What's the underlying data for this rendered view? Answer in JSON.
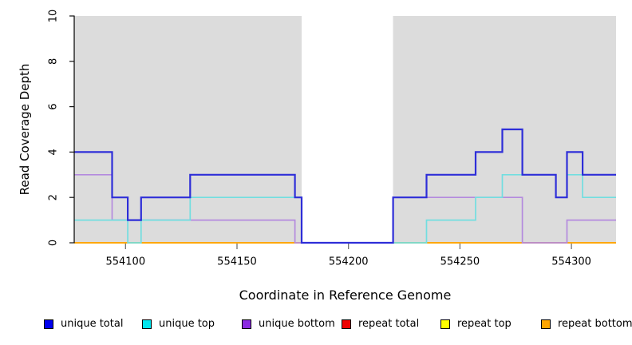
{
  "chart_data": {
    "type": "line",
    "subtype": "step-coverage",
    "title": "",
    "xlabel": "Coordinate in Reference Genome",
    "ylabel": "Read Coverage Depth",
    "xlim": [
      554077,
      554320
    ],
    "ylim": [
      0,
      10
    ],
    "x_ticks": [
      554100,
      554150,
      554200,
      554250,
      554300
    ],
    "y_ticks": [
      0,
      2,
      4,
      6,
      8,
      10
    ],
    "grid": false,
    "legend_position": "bottom",
    "plot_bg_color": "#dcdcdc",
    "zero_coverage_gap": [
      554179,
      554220
    ],
    "background_regions": [
      {
        "from": 554077,
        "to": 554179
      },
      {
        "from": 554220,
        "to": 554320
      }
    ],
    "series": [
      {
        "name": "unique total",
        "color": "#0000ee",
        "line_color": "#2e2ed8",
        "line_width": 2.2,
        "step_points": [
          [
            554077,
            4
          ],
          [
            554094,
            2
          ],
          [
            554101,
            1
          ],
          [
            554107,
            2
          ],
          [
            554129,
            3
          ],
          [
            554176,
            2
          ],
          [
            554179,
            0
          ],
          [
            554220,
            2
          ],
          [
            554235,
            3
          ],
          [
            554257,
            4
          ],
          [
            554269,
            5
          ],
          [
            554278,
            3
          ],
          [
            554293,
            2
          ],
          [
            554298,
            4
          ],
          [
            554305,
            3
          ],
          [
            554320,
            3
          ]
        ]
      },
      {
        "name": "unique top",
        "color": "#00e5ee",
        "line_color": "#72dee0",
        "line_width": 1.7,
        "step_points": [
          [
            554077,
            1
          ],
          [
            554101,
            0
          ],
          [
            554107,
            1
          ],
          [
            554129,
            2
          ],
          [
            554179,
            0
          ],
          [
            554235,
            1
          ],
          [
            554257,
            2
          ],
          [
            554269,
            3
          ],
          [
            554293,
            2
          ],
          [
            554298,
            3
          ],
          [
            554305,
            2
          ],
          [
            554320,
            2
          ]
        ]
      },
      {
        "name": "unique bottom",
        "color": "#8b2be2",
        "line_color": "#b48ade",
        "line_width": 1.7,
        "step_points": [
          [
            554077,
            3
          ],
          [
            554094,
            1
          ],
          [
            554176,
            0
          ],
          [
            554220,
            2
          ],
          [
            554278,
            0
          ],
          [
            554298,
            1
          ],
          [
            554320,
            1
          ]
        ]
      },
      {
        "name": "repeat total",
        "color": "#ee0000",
        "line_color": "#dd2222",
        "line_width": 1.6,
        "step_points": [
          [
            554077,
            0
          ],
          [
            554320,
            0
          ]
        ]
      },
      {
        "name": "repeat top",
        "color": "#ffff00",
        "line_color": "#ffee00",
        "line_width": 1.6,
        "step_points": [
          [
            554077,
            0
          ],
          [
            554320,
            0
          ]
        ]
      },
      {
        "name": "repeat bottom",
        "color": "#ffa500",
        "line_color": "#ffa500",
        "line_width": 1.8,
        "step_points": [
          [
            554077,
            0
          ],
          [
            554320,
            0
          ]
        ]
      }
    ],
    "draw_order": [
      3,
      4,
      5,
      2,
      1,
      0
    ]
  }
}
